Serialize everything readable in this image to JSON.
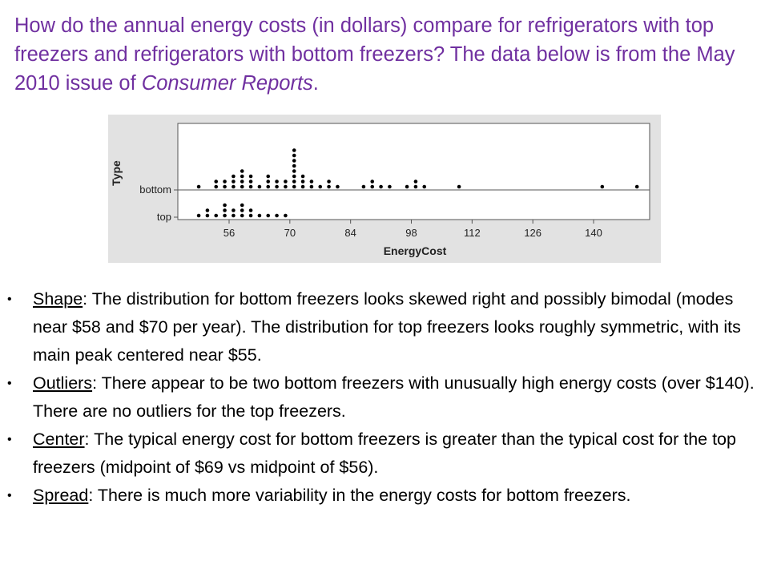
{
  "question": {
    "text_before": "How do the annual energy costs (in dollars) compare for refrigerators with top freezers and refrigerators with bottom freezers?  The data below is from the May 2010 issue of ",
    "source_italic": "Consumer  Reports",
    "text_after": "."
  },
  "chart_data": {
    "type": "scatter",
    "subtype": "dotplot",
    "xlabel": "EnergyCost",
    "ylabel": "Type",
    "categories": [
      "bottom",
      "top"
    ],
    "xticks": [
      56,
      70,
      84,
      98,
      112,
      126,
      140
    ],
    "xlim": [
      45,
      155
    ],
    "grid": false,
    "series": [
      {
        "name": "bottom",
        "points": [
          [
            49,
            1
          ],
          [
            53,
            2
          ],
          [
            53,
            1
          ],
          [
            55,
            2
          ],
          [
            55,
            1
          ],
          [
            57,
            3
          ],
          [
            57,
            2
          ],
          [
            57,
            1
          ],
          [
            59,
            4
          ],
          [
            59,
            3
          ],
          [
            59,
            2
          ],
          [
            59,
            1
          ],
          [
            61,
            3
          ],
          [
            61,
            2
          ],
          [
            61,
            1
          ],
          [
            63,
            1
          ],
          [
            65,
            3
          ],
          [
            65,
            2
          ],
          [
            65,
            1
          ],
          [
            67,
            2
          ],
          [
            67,
            1
          ],
          [
            69,
            2
          ],
          [
            69,
            1
          ],
          [
            71,
            8
          ],
          [
            71,
            7
          ],
          [
            71,
            6
          ],
          [
            71,
            5
          ],
          [
            71,
            4
          ],
          [
            71,
            3
          ],
          [
            71,
            2
          ],
          [
            71,
            1
          ],
          [
            73,
            3
          ],
          [
            73,
            2
          ],
          [
            73,
            1
          ],
          [
            75,
            2
          ],
          [
            75,
            1
          ],
          [
            77,
            1
          ],
          [
            79,
            2
          ],
          [
            79,
            1
          ],
          [
            81,
            1
          ],
          [
            87,
            1
          ],
          [
            89,
            2
          ],
          [
            89,
            1
          ],
          [
            91,
            1
          ],
          [
            93,
            1
          ],
          [
            97,
            1
          ],
          [
            99,
            2
          ],
          [
            99,
            1
          ],
          [
            101,
            1
          ],
          [
            109,
            1
          ],
          [
            142,
            1
          ],
          [
            150,
            1
          ]
        ]
      },
      {
        "name": "top",
        "points": [
          [
            49,
            1
          ],
          [
            51,
            2
          ],
          [
            51,
            1
          ],
          [
            53,
            1
          ],
          [
            55,
            3
          ],
          [
            55,
            2
          ],
          [
            55,
            1
          ],
          [
            57,
            2
          ],
          [
            57,
            1
          ],
          [
            59,
            3
          ],
          [
            59,
            2
          ],
          [
            59,
            1
          ],
          [
            61,
            2
          ],
          [
            61,
            1
          ],
          [
            63,
            1
          ],
          [
            65,
            1
          ],
          [
            67,
            1
          ],
          [
            69,
            1
          ]
        ]
      }
    ]
  },
  "notes": [
    {
      "term": "Shape",
      "text": ": The distribution for bottom freezers looks skewed right and possibly bimodal (modes near $58 and $70 per year).  The distribution for top freezers looks roughly symmetric, with its main peak centered near $55."
    },
    {
      "term": "Outliers",
      "text": ": There appear to be two bottom freezers with unusually high energy costs (over $140).  There are no outliers for the top freezers."
    },
    {
      "term": "Center",
      "text": ": The typical energy cost for bottom freezers is greater than the typical cost for the  top freezers (midpoint of $69 vs midpoint of $56)."
    },
    {
      "term": "Spread",
      "text": ": There is much more variability in the energy costs for bottom freezers."
    }
  ]
}
